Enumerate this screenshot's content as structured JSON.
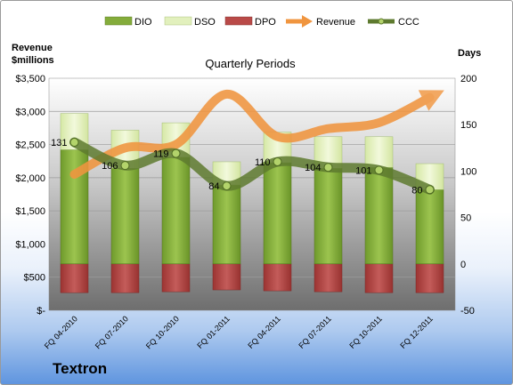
{
  "company": "Textron",
  "chart_data": {
    "type": "bar",
    "title": "Quarterly Periods",
    "categories": [
      "FQ 04-2010",
      "FQ 07-2010",
      "FQ 10-2010",
      "FQ 01-2011",
      "FQ 04-2011",
      "FQ 07-2011",
      "FQ 10-2011",
      "FQ 12-2011"
    ],
    "left_axis": {
      "label_lines": [
        "Revenue",
        "$millions"
      ],
      "range": [
        0,
        3500
      ],
      "ticks": [
        0,
        500,
        1000,
        1500,
        2000,
        2500,
        3000,
        3500
      ],
      "tick_labels": [
        "$-",
        "$500",
        "$1,000",
        "$1,500",
        "$2,000",
        "$2,500",
        "$3,000",
        "$3,500"
      ]
    },
    "right_axis": {
      "label": "Days",
      "range": [
        -50,
        200
      ],
      "ticks": [
        -50,
        0,
        50,
        100,
        150,
        200
      ],
      "tick_labels": [
        "-50",
        "0",
        "50",
        "100",
        "150",
        "200"
      ]
    },
    "series": [
      {
        "name": "DIO",
        "axis": "right",
        "kind": "stacked-bar",
        "color": "#84ac3b",
        "values": [
          123,
          103,
          115,
          85,
          109,
          103,
          104,
          80
        ]
      },
      {
        "name": "DSO",
        "axis": "right",
        "kind": "stacked-bar",
        "color": "#e2f0bd",
        "values": [
          39,
          41,
          37,
          25,
          33,
          34,
          33,
          28
        ]
      },
      {
        "name": "DPO",
        "axis": "right",
        "kind": "negative-bar",
        "color": "#b94a48",
        "values": [
          -31,
          -31,
          -30,
          -28,
          -29,
          -30,
          -31,
          -31
        ]
      },
      {
        "name": "Revenue",
        "axis": "left",
        "kind": "line",
        "color": "#f0953f",
        "values": [
          2050,
          2450,
          2500,
          3260,
          2620,
          2740,
          2830,
          3210
        ]
      },
      {
        "name": "CCC",
        "axis": "right",
        "kind": "line",
        "color": "#5e7a2f",
        "values": [
          131,
          106,
          119,
          84,
          110,
          104,
          101,
          80
        ],
        "labels": [
          "131",
          "106",
          "119",
          "84",
          "110",
          "104",
          "101",
          "80"
        ]
      }
    ],
    "legend": "top",
    "grid": true
  }
}
